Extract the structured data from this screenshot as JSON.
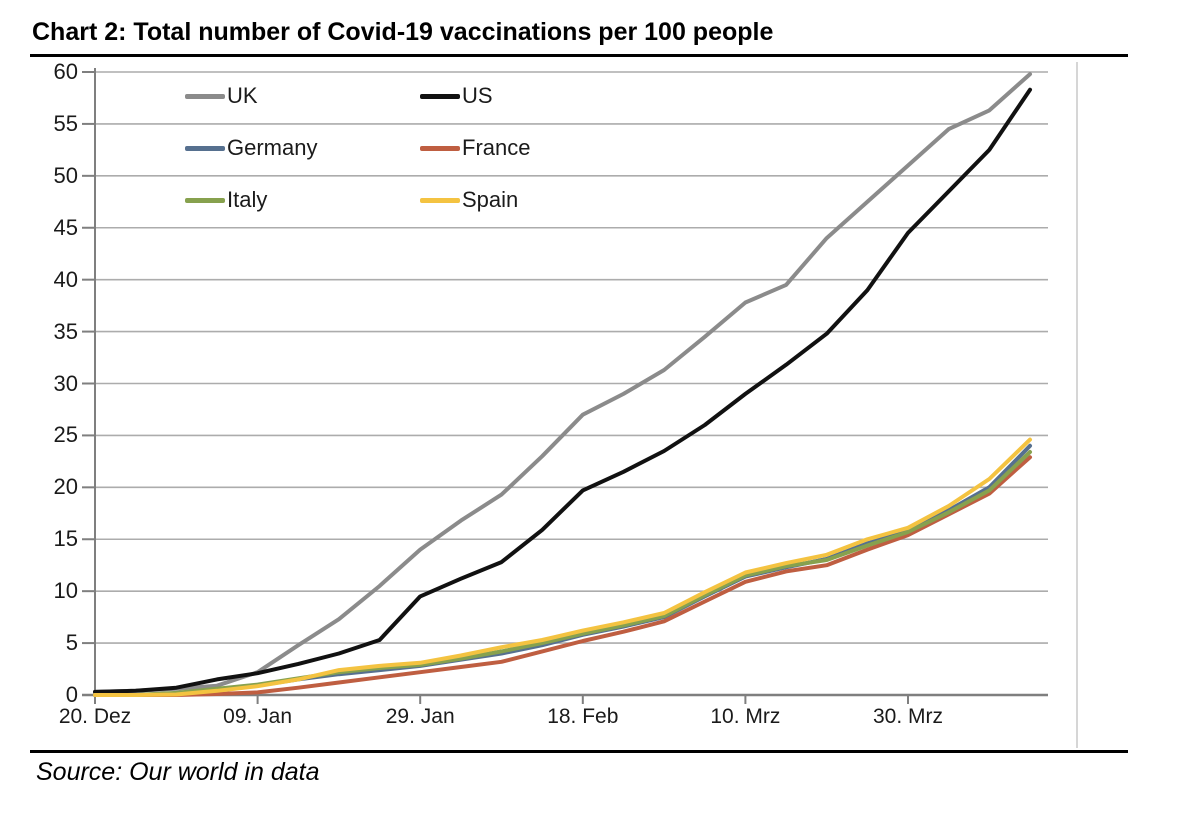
{
  "title": "Chart 2: Total number of Covid-19 vaccinations per 100 people",
  "source_note": "Source: Our world in data",
  "style_colors": {
    "background": "#ffffff",
    "grid": "#acacac",
    "axis": "#7f7f7f",
    "tick_label": "#1a1a1a",
    "title_text": "#000000",
    "rule_lines": "#000000",
    "right_frame": "#d6d6d6"
  },
  "chart_data": {
    "type": "line",
    "title": "Chart 2: Total number of Covid-19 vaccinations per 100 people",
    "xlabel": "",
    "ylabel": "",
    "grid": "horizontal",
    "y_axis": {
      "ticks": [
        0,
        5,
        10,
        15,
        20,
        25,
        30,
        35,
        40,
        45,
        50,
        55,
        60
      ],
      "range": [
        0,
        60
      ]
    },
    "x_axis": {
      "tick_labels": [
        "20. Dez",
        "09. Jan",
        "29. Jan",
        "18. Feb",
        "10. Mrz",
        "30. Mrz"
      ],
      "tick_days": [
        0,
        20,
        40,
        60,
        80,
        100
      ],
      "range_days": [
        0,
        117
      ]
    },
    "legend": {
      "position": "top-left inside plot area",
      "columns": 2,
      "entries": [
        "UK",
        "US",
        "Germany",
        "France",
        "Italy",
        "Spain"
      ]
    },
    "sample_days": [
      0,
      5,
      10,
      15,
      20,
      25,
      30,
      35,
      40,
      45,
      50,
      55,
      60,
      65,
      70,
      75,
      80,
      85,
      90,
      95,
      100,
      105,
      110,
      115
    ],
    "sample_dates": [
      "20. Dez",
      "25. Dez",
      "30. Dez",
      "04. Jan",
      "09. Jan",
      "14. Jan",
      "19. Jan",
      "24. Jan",
      "29. Jan",
      "03. Feb",
      "08. Feb",
      "13. Feb",
      "18. Feb",
      "23. Feb",
      "28. Feb",
      "05. Mrz",
      "10. Mrz",
      "15. Mrz",
      "20. Mrz",
      "25. Mrz",
      "30. Mrz",
      "04. Apr",
      "09. Apr",
      "14. Apr"
    ],
    "series": [
      {
        "name": "UK",
        "color": "#8b8b8b",
        "values": [
          0.3,
          0.4,
          0.6,
          0.9,
          2.2,
          4.8,
          7.3,
          10.5,
          14.0,
          16.8,
          19.3,
          23.0,
          27.0,
          29.0,
          31.3,
          34.5,
          37.8,
          39.5,
          44.0,
          47.5,
          51.0,
          54.5,
          56.3,
          59.8
        ]
      },
      {
        "name": "US",
        "color": "#111111",
        "values": [
          0.3,
          0.4,
          0.7,
          1.5,
          2.1,
          3.0,
          4.0,
          5.3,
          9.5,
          11.2,
          12.8,
          15.9,
          19.7,
          21.5,
          23.5,
          26.0,
          29.0,
          31.8,
          34.8,
          39.0,
          44.5,
          48.5,
          52.5,
          58.3
        ]
      },
      {
        "name": "Germany",
        "color": "#56708f",
        "values": [
          0.0,
          0.0,
          0.15,
          0.5,
          0.9,
          1.5,
          2.0,
          2.4,
          2.8,
          3.4,
          4.0,
          4.8,
          5.8,
          6.6,
          7.5,
          9.5,
          11.4,
          12.3,
          13.1,
          14.6,
          15.8,
          17.8,
          20.0,
          24.0
        ]
      },
      {
        "name": "France",
        "color": "#bf5e41",
        "values": [
          0.0,
          0.0,
          0.0,
          0.1,
          0.25,
          0.7,
          1.2,
          1.7,
          2.2,
          2.7,
          3.2,
          4.2,
          5.2,
          6.1,
          7.1,
          9.0,
          10.9,
          11.9,
          12.5,
          14.0,
          15.4,
          17.4,
          19.4,
          22.9
        ]
      },
      {
        "name": "Italy",
        "color": "#87a14e",
        "values": [
          0.0,
          0.0,
          0.2,
          0.6,
          1.0,
          1.6,
          2.2,
          2.6,
          2.9,
          3.5,
          4.2,
          5.0,
          5.9,
          6.7,
          7.6,
          9.6,
          11.5,
          12.4,
          13.0,
          14.4,
          15.7,
          17.6,
          19.7,
          23.4
        ]
      },
      {
        "name": "Spain",
        "color": "#f4c341",
        "values": [
          0.0,
          0.0,
          0.05,
          0.4,
          0.85,
          1.5,
          2.4,
          2.8,
          3.1,
          3.8,
          4.6,
          5.3,
          6.2,
          7.0,
          7.9,
          9.9,
          11.8,
          12.7,
          13.5,
          15.0,
          16.1,
          18.2,
          20.8,
          24.6
        ]
      }
    ]
  }
}
